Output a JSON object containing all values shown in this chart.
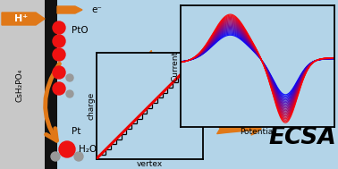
{
  "bg_color": "#b3d4e8",
  "left_gray_bg": "#c8c8c8",
  "black_strip_color": "#111111",
  "arrow_color": "#e07818",
  "ecsa_text": "ECSA",
  "csh2po4_text": "CsH₂PO₄",
  "pto_text": "PtO",
  "pt_text": "Pt",
  "h2o_text": "H₂O",
  "hplus_text": "H⁺",
  "eminus_text": "e⁻",
  "charge_label": "charge",
  "vertex_label": "vertex",
  "current_label": "Current",
  "potential_label": "Potential",
  "red_line_color": "#ee0000",
  "ball_red": "#ee1111",
  "ball_gray": "#999999",
  "ball_dark_red": "#cc0000"
}
